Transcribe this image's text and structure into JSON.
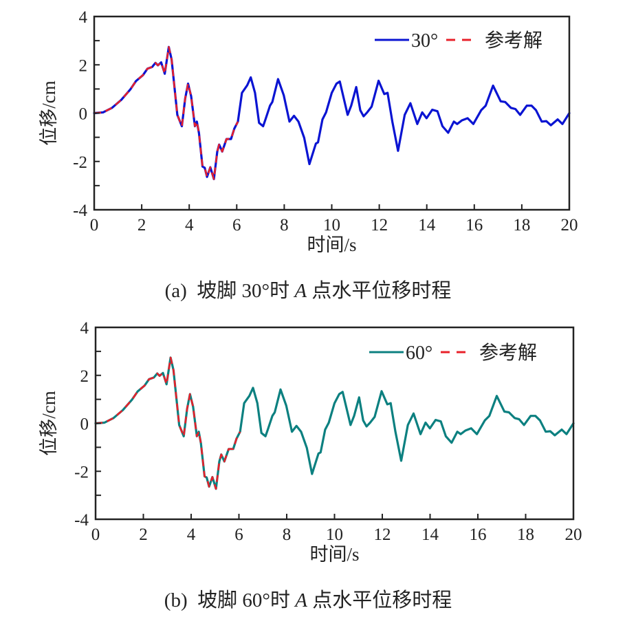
{
  "chart_data": [
    {
      "type": "line",
      "panel": "a",
      "caption_prefix": "(a)  坡脚 30°时 ",
      "caption_italic": "A",
      "caption_suffix": " 点水平位移时程",
      "xlabel": "时间/s",
      "ylabel": "位移/cm",
      "xlim": [
        0,
        20
      ],
      "ylim": [
        -4,
        4
      ],
      "xticks": [
        "0",
        "2",
        "4",
        "6",
        "8",
        "10",
        "12",
        "14",
        "16",
        "18",
        "20"
      ],
      "yticks": [
        "4",
        "2",
        "0",
        "-2",
        "-4"
      ],
      "legend_position": "top-right",
      "series": [
        {
          "name": "30°",
          "color": "#0a14d2",
          "style": "solid",
          "x": [
            0,
            0.37,
            0.75,
            1.14,
            1.52,
            1.76,
            2.05,
            2.24,
            2.44,
            2.58,
            2.68,
            2.82,
            2.97,
            3.14,
            3.26,
            3.5,
            3.69,
            3.83,
            3.95,
            4.08,
            4.24,
            4.32,
            4.41,
            4.56,
            4.65,
            4.75,
            4.89,
            5.04,
            5.18,
            5.26,
            5.39,
            5.57,
            5.76,
            5.9,
            6.05,
            6.22,
            6.44,
            6.59,
            6.77,
            6.94,
            7.11,
            7.21,
            7.4,
            7.5,
            7.74,
            7.98,
            8.22,
            8.41,
            8.6,
            8.84,
            9.06,
            9.33,
            9.42,
            9.61,
            9.76,
            10,
            10.2,
            10.34,
            10.67,
            10.82,
            11.03,
            11.2,
            11.34,
            11.49,
            11.68,
            11.97,
            12.21,
            12.35,
            12.55,
            12.79,
            13.07,
            13.31,
            13.6,
            13.81,
            13.99,
            14.23,
            14.45,
            14.66,
            14.9,
            15.14,
            15.28,
            15.48,
            15.72,
            15.96,
            16.29,
            16.48,
            16.79,
            17.11,
            17.3,
            17.54,
            17.73,
            17.93,
            18.21,
            18.41,
            18.6,
            18.84,
            19.03,
            19.22,
            19.51,
            19.71,
            20
          ],
          "y": [
            0,
            0.03,
            0.22,
            0.55,
            0.98,
            1.33,
            1.57,
            1.84,
            1.91,
            2.08,
            1.98,
            2.1,
            1.63,
            2.74,
            2.22,
            -0.07,
            -0.54,
            0.6,
            1.22,
            0.7,
            -0.54,
            -0.35,
            -0.83,
            -2.21,
            -2.26,
            -2.64,
            -2.24,
            -2.73,
            -1.59,
            -1.3,
            -1.59,
            -1.07,
            -1.07,
            -0.64,
            -0.35,
            0.84,
            1.15,
            1.48,
            0.84,
            -0.4,
            -0.54,
            -0.26,
            0.31,
            0.46,
            1.41,
            0.74,
            -0.35,
            -0.11,
            -0.35,
            -1.02,
            -2.11,
            -1.26,
            -1.21,
            -0.26,
            0.03,
            0.84,
            1.22,
            1.31,
            -0.07,
            0.31,
            1.08,
            0.12,
            -0.13,
            0.03,
            0.27,
            1.34,
            0.79,
            0.84,
            -0.35,
            -1.56,
            -0.07,
            0.41,
            -0.45,
            0.03,
            -0.21,
            0.14,
            0.08,
            -0.54,
            -0.81,
            -0.35,
            -0.45,
            -0.3,
            -0.21,
            -0.45,
            0.12,
            0.31,
            1.14,
            0.49,
            0.46,
            0.22,
            0.17,
            -0.07,
            0.31,
            0.31,
            0.12,
            -0.35,
            -0.33,
            -0.5,
            -0.26,
            -0.45,
            0
          ]
        },
        {
          "name": "参考解",
          "color": "#e8202a",
          "style": "dashed",
          "x": [
            0,
            0.37,
            0.75,
            1.14,
            1.52,
            1.76,
            2.05,
            2.24,
            2.44,
            2.58,
            2.68,
            2.82,
            2.97,
            3.14,
            3.26,
            3.5,
            3.69,
            3.83,
            3.95,
            4.08,
            4.24,
            4.32,
            4.41,
            4.56,
            4.65,
            4.75,
            4.89,
            5.04,
            5.18,
            5.26,
            5.39,
            5.57,
            5.76,
            5.9,
            6.05
          ],
          "y": [
            0,
            0.03,
            0.22,
            0.55,
            0.98,
            1.33,
            1.57,
            1.84,
            1.91,
            2.08,
            1.98,
            2.1,
            1.63,
            2.74,
            2.22,
            -0.07,
            -0.54,
            0.6,
            1.22,
            0.7,
            -0.54,
            -0.35,
            -0.83,
            -2.21,
            -2.26,
            -2.64,
            -2.24,
            -2.73,
            -1.59,
            -1.3,
            -1.59,
            -1.07,
            -1.07,
            -0.64,
            -0.35
          ]
        }
      ]
    },
    {
      "type": "line",
      "panel": "b",
      "caption_prefix": "(b)  坡脚 60°时 ",
      "caption_italic": "A",
      "caption_suffix": " 点水平位移时程",
      "xlabel": "时间/s",
      "ylabel": "位移/cm",
      "xlim": [
        0,
        20
      ],
      "ylim": [
        -4,
        4
      ],
      "xticks": [
        "0",
        "2",
        "4",
        "6",
        "8",
        "10",
        "12",
        "14",
        "16",
        "18",
        "20"
      ],
      "yticks": [
        "4",
        "2",
        "0",
        "-2",
        "-4"
      ],
      "legend_position": "top-right",
      "series": [
        {
          "name": "60°",
          "color": "#0c8080",
          "style": "solid",
          "x": [
            0,
            0.37,
            0.75,
            1.14,
            1.52,
            1.76,
            2.05,
            2.24,
            2.44,
            2.58,
            2.68,
            2.82,
            2.97,
            3.14,
            3.26,
            3.5,
            3.69,
            3.83,
            3.95,
            4.08,
            4.24,
            4.32,
            4.41,
            4.56,
            4.65,
            4.75,
            4.89,
            5.04,
            5.18,
            5.26,
            5.39,
            5.57,
            5.76,
            5.9,
            6.05,
            6.22,
            6.44,
            6.59,
            6.77,
            6.94,
            7.11,
            7.21,
            7.4,
            7.5,
            7.74,
            7.98,
            8.22,
            8.41,
            8.6,
            8.84,
            9.06,
            9.33,
            9.42,
            9.61,
            9.76,
            10,
            10.2,
            10.34,
            10.67,
            10.82,
            11.03,
            11.2,
            11.34,
            11.49,
            11.68,
            11.97,
            12.21,
            12.35,
            12.55,
            12.79,
            13.07,
            13.31,
            13.6,
            13.81,
            13.99,
            14.23,
            14.45,
            14.66,
            14.9,
            15.14,
            15.28,
            15.48,
            15.72,
            15.96,
            16.29,
            16.48,
            16.79,
            17.11,
            17.3,
            17.54,
            17.73,
            17.93,
            18.21,
            18.41,
            18.6,
            18.84,
            19.03,
            19.22,
            19.51,
            19.71,
            20
          ],
          "y": [
            0,
            0.03,
            0.22,
            0.55,
            0.98,
            1.33,
            1.57,
            1.84,
            1.91,
            2.08,
            1.98,
            2.1,
            1.63,
            2.74,
            2.22,
            -0.07,
            -0.54,
            0.6,
            1.22,
            0.7,
            -0.54,
            -0.35,
            -0.83,
            -2.21,
            -2.26,
            -2.64,
            -2.24,
            -2.73,
            -1.59,
            -1.3,
            -1.59,
            -1.07,
            -1.07,
            -0.64,
            -0.35,
            0.84,
            1.15,
            1.48,
            0.84,
            -0.4,
            -0.54,
            -0.26,
            0.31,
            0.46,
            1.41,
            0.74,
            -0.35,
            -0.11,
            -0.35,
            -1.02,
            -2.11,
            -1.26,
            -1.21,
            -0.26,
            0.03,
            0.84,
            1.22,
            1.31,
            -0.07,
            0.31,
            1.08,
            0.12,
            -0.13,
            0.03,
            0.27,
            1.34,
            0.79,
            0.84,
            -0.35,
            -1.56,
            -0.07,
            0.41,
            -0.45,
            0.03,
            -0.21,
            0.14,
            0.08,
            -0.54,
            -0.81,
            -0.35,
            -0.45,
            -0.3,
            -0.21,
            -0.45,
            0.12,
            0.31,
            1.14,
            0.49,
            0.46,
            0.22,
            0.17,
            -0.07,
            0.31,
            0.31,
            0.12,
            -0.35,
            -0.33,
            -0.5,
            -0.26,
            -0.45,
            0
          ]
        },
        {
          "name": "参考解",
          "color": "#e8202a",
          "style": "dashed",
          "x": [
            0,
            0.37,
            0.75,
            1.14,
            1.52,
            1.76,
            2.05,
            2.24,
            2.44,
            2.58,
            2.68,
            2.82,
            2.97,
            3.14,
            3.26,
            3.5,
            3.69,
            3.83,
            3.95,
            4.08,
            4.24,
            4.32,
            4.41,
            4.56,
            4.65,
            4.75,
            4.89,
            5.04,
            5.18,
            5.26,
            5.39,
            5.57,
            5.76,
            5.9,
            6.05
          ],
          "y": [
            0,
            0.03,
            0.22,
            0.55,
            0.98,
            1.33,
            1.57,
            1.84,
            1.91,
            2.08,
            1.98,
            2.1,
            1.63,
            2.74,
            2.22,
            -0.07,
            -0.54,
            0.6,
            1.22,
            0.7,
            -0.54,
            -0.35,
            -0.83,
            -2.21,
            -2.26,
            -2.64,
            -2.24,
            -2.73,
            -1.59,
            -1.3,
            -1.59,
            -1.07,
            -1.07,
            -0.64,
            -0.35
          ]
        }
      ]
    }
  ]
}
